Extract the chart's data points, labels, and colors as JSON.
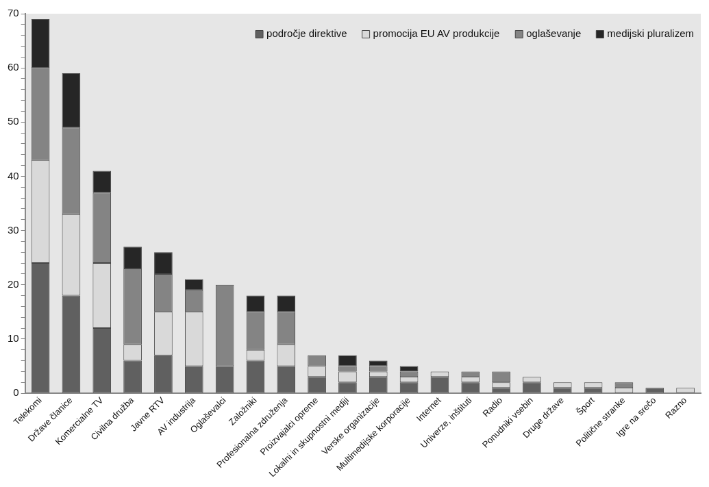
{
  "chart_data": {
    "type": "bar",
    "stacked": true,
    "categories": [
      "Telekomi",
      "Države članice",
      "Komercialne TV",
      "Civilna družba",
      "Javne RTV",
      "AV industrija",
      "Oglaševalci",
      "Založniki",
      "Profesionalna združenja",
      "Proizvajalci opreme",
      "Lokalni in skupnostni mediji",
      "Verske organizacije",
      "Multimedijske korporacije",
      "Internet",
      "Univerze, inštituti",
      "Radio",
      "Ponudniki vsebin",
      "Druge države",
      "Šport",
      "Politične stranke",
      "Igre na srečo",
      "Razno"
    ],
    "series": [
      {
        "name": "področje direktive",
        "color": "#606060",
        "values": [
          24,
          18,
          12,
          6,
          7,
          5,
          5,
          6,
          5,
          3,
          2,
          3,
          2,
          3,
          2,
          1,
          2,
          1,
          1,
          0,
          1,
          0
        ]
      },
      {
        "name": "promocija EU AV produkcije",
        "color": "#d9d9d9",
        "values": [
          19,
          15,
          12,
          3,
          8,
          10,
          0,
          2,
          4,
          2,
          2,
          1,
          1,
          1,
          1,
          1,
          1,
          1,
          1,
          1,
          0,
          1
        ]
      },
      {
        "name": "oglaševanje",
        "color": "#848484",
        "values": [
          17,
          16,
          13,
          14,
          7,
          4,
          15,
          7,
          6,
          2,
          1,
          1,
          1,
          0,
          1,
          2,
          0,
          0,
          0,
          1,
          0,
          0
        ]
      },
      {
        "name": "medijski pluralizem",
        "color": "#262626",
        "values": [
          9,
          10,
          4,
          4,
          4,
          2,
          0,
          3,
          3,
          0,
          2,
          1,
          1,
          0,
          0,
          0,
          0,
          0,
          0,
          0,
          0,
          0
        ]
      }
    ],
    "ylim": [
      0,
      70
    ],
    "yticks": [
      0,
      {
        "value": 2,
        "label": null
      },
      {
        "value": 4,
        "label": null
      },
      {
        "value": 6,
        "label": null
      },
      {
        "value": 8,
        "label": null
      },
      10,
      {
        "value": 12,
        "label": null
      },
      {
        "value": 14,
        "label": null
      },
      {
        "value": 16,
        "label": null
      },
      {
        "value": 18,
        "label": null
      },
      20,
      {
        "value": 22,
        "label": null
      },
      {
        "value": 24,
        "label": null
      },
      {
        "value": 26,
        "label": null
      },
      {
        "value": 28,
        "label": null
      },
      30,
      {
        "value": 32,
        "label": null
      },
      {
        "value": 34,
        "label": null
      },
      {
        "value": 36,
        "label": null
      },
      {
        "value": 38,
        "label": null
      },
      40,
      {
        "value": 42,
        "label": null
      },
      {
        "value": 44,
        "label": null
      },
      {
        "value": 46,
        "label": null
      },
      {
        "value": 48,
        "label": null
      },
      50,
      {
        "value": 52,
        "label": null
      },
      {
        "value": 54,
        "label": null
      },
      {
        "value": 56,
        "label": null
      },
      {
        "value": 58,
        "label": null
      },
      60,
      {
        "value": 62,
        "label": null
      },
      {
        "value": 64,
        "label": null
      },
      {
        "value": 66,
        "label": null
      },
      {
        "value": 68,
        "label": null
      },
      70
    ],
    "grid": false,
    "legend": "top right"
  }
}
